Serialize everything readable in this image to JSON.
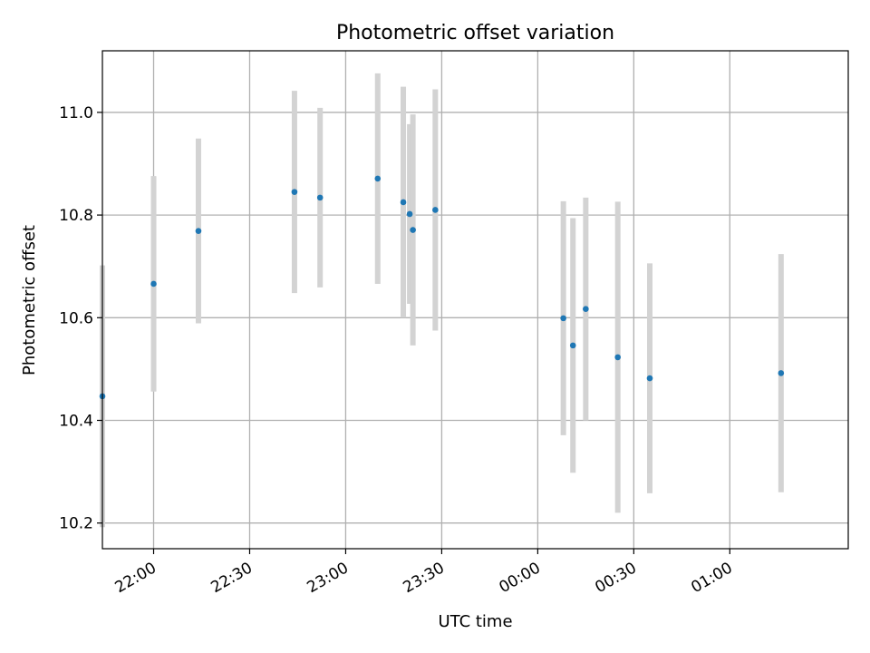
{
  "chart_data": {
    "type": "scatter",
    "title": "Photometric offset variation",
    "xlabel": "UTC time",
    "ylabel": "Photometric offset",
    "x_axis": {
      "kind": "time",
      "range": [
        "21:44",
        "01:37"
      ],
      "ticks": [
        "22:00",
        "22:30",
        "23:00",
        "23:30",
        "00:00",
        "00:30",
        "01:00"
      ]
    },
    "y_axis": {
      "range": [
        10.15,
        11.12
      ],
      "ticks": [
        "10.2",
        "10.4",
        "10.6",
        "10.8",
        "11.0"
      ]
    },
    "grid": true,
    "points": [
      {
        "x": "21:44",
        "y": 10.447,
        "err": 0.255
      },
      {
        "x": "22:00",
        "y": 10.666,
        "err": 0.21
      },
      {
        "x": "22:14",
        "y": 10.769,
        "err": 0.18
      },
      {
        "x": "22:44",
        "y": 10.845,
        "err": 0.197
      },
      {
        "x": "22:52",
        "y": 10.834,
        "err": 0.175
      },
      {
        "x": "23:10",
        "y": 10.871,
        "err": 0.205
      },
      {
        "x": "23:18",
        "y": 10.825,
        "err": 0.225
      },
      {
        "x": "23:20",
        "y": 10.802,
        "err": 0.175
      },
      {
        "x": "23:21",
        "y": 10.771,
        "err": 0.225
      },
      {
        "x": "23:28",
        "y": 10.81,
        "err": 0.235
      },
      {
        "x": "00:08",
        "y": 10.599,
        "err": 0.228
      },
      {
        "x": "00:11",
        "y": 10.546,
        "err": 0.248
      },
      {
        "x": "00:15",
        "y": 10.617,
        "err": 0.217
      },
      {
        "x": "00:25",
        "y": 10.523,
        "err": 0.303
      },
      {
        "x": "00:35",
        "y": 10.482,
        "err": 0.224
      },
      {
        "x": "01:16",
        "y": 10.492,
        "err": 0.232
      }
    ],
    "colors": {
      "point": "#1f77b4",
      "errorbar": "#d3d3d3",
      "grid": "#b0b0b0"
    }
  }
}
